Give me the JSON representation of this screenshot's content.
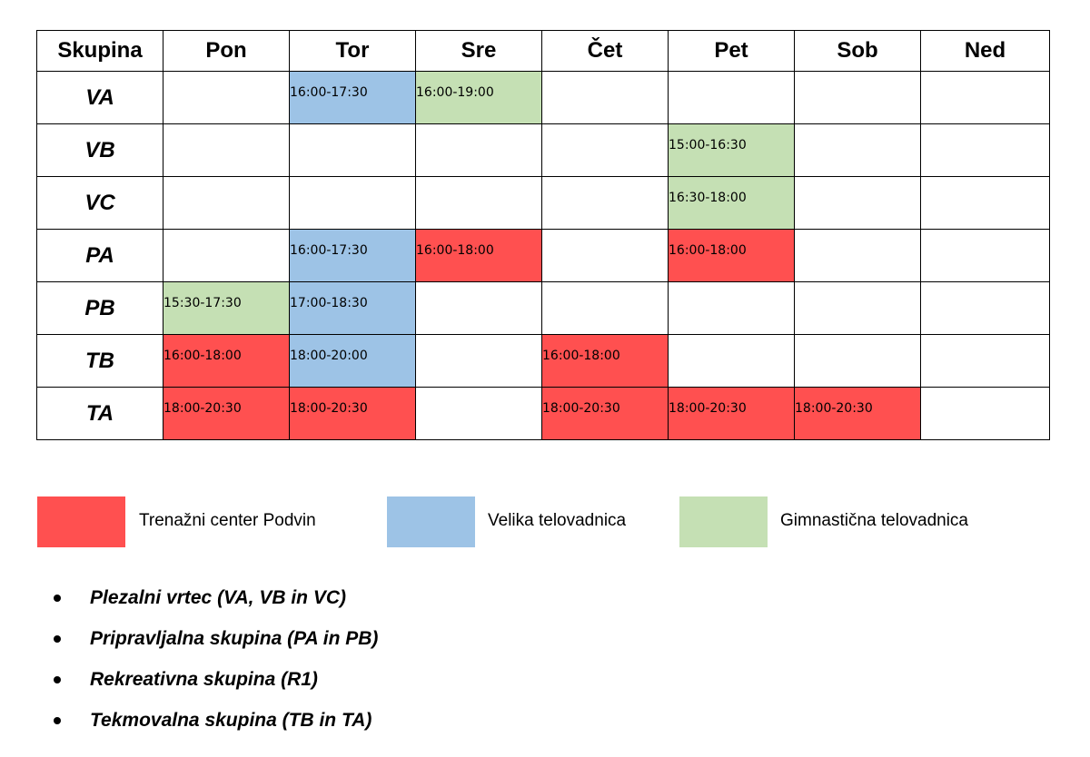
{
  "table": {
    "headers": [
      "Skupina",
      "Pon",
      "Tor",
      "Sre",
      "Čet",
      "Pet",
      "Sob",
      "Ned"
    ],
    "rows": [
      {
        "group": "VA",
        "cells": [
          "",
          "16:00-17:30",
          "16:00-19:00",
          "",
          "",
          "",
          ""
        ]
      },
      {
        "group": "VB",
        "cells": [
          "",
          "",
          "",
          "",
          "15:00-16:30",
          "",
          ""
        ]
      },
      {
        "group": "VC",
        "cells": [
          "",
          "",
          "",
          "",
          "16:30-18:00",
          "",
          ""
        ]
      },
      {
        "group": "PA",
        "cells": [
          "",
          "16:00-17:30",
          "16:00-18:00",
          "",
          "16:00-18:00",
          "",
          ""
        ]
      },
      {
        "group": "PB",
        "cells": [
          "15:30-17:30",
          "17:00-18:30",
          "",
          "",
          "",
          "",
          ""
        ]
      },
      {
        "group": "TB",
        "cells": [
          "16:00-18:00",
          "18:00-20:00",
          "",
          "16:00-18:00",
          "",
          "",
          ""
        ]
      },
      {
        "group": "TA",
        "cells": [
          "18:00-20:30",
          "18:00-20:30",
          "",
          "18:00-20:30",
          "18:00-20:30",
          "18:00-20:30",
          ""
        ]
      }
    ]
  },
  "legend": [
    {
      "label": "Trenažni center Podvin",
      "color": "#ff5050"
    },
    {
      "label": "Velika telovadnica",
      "color": "#9dc3e6"
    },
    {
      "label": "Gimnastična telovadnica",
      "color": "#c5e0b4"
    }
  ],
  "groups_list": [
    "Plezalni vrtec (VA, VB in VC)",
    "Pripravljalna skupina (PA in PB)",
    "Rekreativna skupina (R1)",
    "Tekmovalna skupina (TB in TA)"
  ]
}
